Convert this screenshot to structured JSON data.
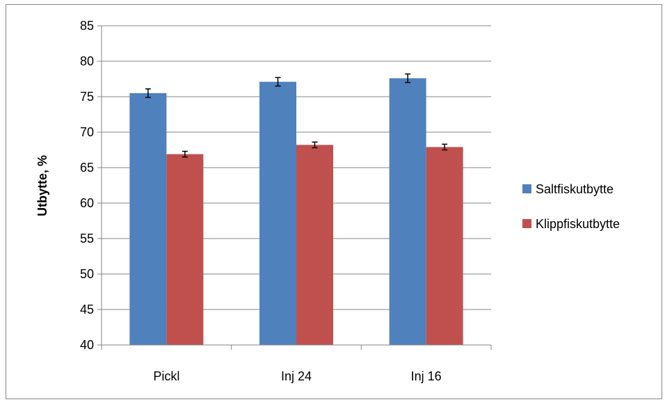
{
  "chart_data": {
    "type": "bar",
    "categories": [
      "Pickl",
      "Inj 24",
      "Inj 16"
    ],
    "series": [
      {
        "name": "Saltfiskutbytte",
        "values": [
          75.5,
          77.1,
          77.6
        ],
        "errors": [
          0.6,
          0.6,
          0.6
        ],
        "color": "#4f81bd"
      },
      {
        "name": "Klippfiskutbytte",
        "values": [
          66.9,
          68.2,
          67.9
        ],
        "errors": [
          0.4,
          0.4,
          0.4
        ],
        "color": "#c0504d"
      }
    ],
    "title": "",
    "xlabel": "",
    "ylabel": "Utbytte, %",
    "ylim": [
      40,
      85
    ],
    "yticks": [
      40,
      45,
      50,
      55,
      60,
      65,
      70,
      75,
      80,
      85
    ],
    "grid": true,
    "legend_position": "right",
    "gridline_color": "#868686"
  }
}
